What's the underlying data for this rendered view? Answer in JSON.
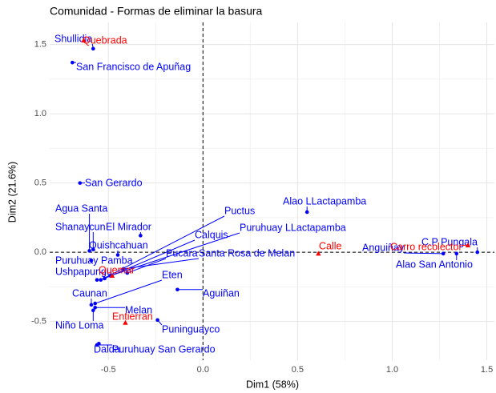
{
  "chart_data": {
    "type": "scatter",
    "title": "Comunidad - Formas de eliminar la basura",
    "x_label": "Dim1 (58%)",
    "y_label": "Dim2 (21.6%)",
    "xlim": [
      -0.81,
      1.54
    ],
    "ylim": [
      -0.78,
      1.66
    ],
    "xticks": [
      {
        "value": -0.5,
        "label": "-0.5"
      },
      {
        "value": 0,
        "label": "0.0"
      },
      {
        "value": 0.5,
        "label": "0.5"
      },
      {
        "value": 1,
        "label": "1.0"
      },
      {
        "value": 1.5,
        "label": "1.5"
      }
    ],
    "yticks": [
      {
        "value": -0.5,
        "label": "-0.5"
      },
      {
        "value": 0,
        "label": "0.0"
      },
      {
        "value": 0.5,
        "label": "0.5"
      },
      {
        "value": 1,
        "label": "1.0"
      },
      {
        "value": 1.5,
        "label": "1.5"
      }
    ],
    "grid": true,
    "series": [
      {
        "color": "#0000ff",
        "marker": "circle",
        "labels": [
          "Shullidia",
          "San Francisco de Apuñag",
          "San Gerardo",
          "Agua Santa",
          "Shanaycun",
          "Quishcahuan",
          "El Mirador",
          "Puctus",
          "Calquis",
          "Puruhuay LLactapamba",
          "Alao LLactapamba",
          "Pucara",
          "Santa Rosa de Melan",
          "Puruhuay Pamba",
          "Ushpapungu",
          "Caunan",
          "Eten",
          "Aguiñan",
          "Melan",
          "Niño Loma",
          "Puninguayco",
          "Dalda",
          "Puruhuay San Gerardo",
          "Anguiñay",
          "C.P Pungala",
          "Alao San Antonio"
        ],
        "x": [
          -0.58,
          -0.69,
          -0.65,
          -0.6,
          -0.58,
          -0.45,
          -0.33,
          -0.54,
          -0.52,
          -0.49,
          0.55,
          -0.4,
          -0.42,
          -0.59,
          -0.56,
          -0.59,
          -0.57,
          -0.135,
          -0.57,
          -0.58,
          -0.24,
          -0.55,
          -0.56,
          1.27,
          1.45,
          1.34
        ],
        "values": [
          1.47,
          1.37,
          0.5,
          0.01,
          0.02,
          -0.02,
          0.12,
          -0.2,
          -0.19,
          -0.17,
          0.29,
          -0.15,
          -0.12,
          -0.06,
          -0.2,
          -0.38,
          -0.37,
          -0.27,
          -0.4,
          -0.42,
          -0.49,
          -0.66,
          -0.67,
          -0.01,
          0,
          -0.01
        ]
      },
      {
        "color": "#ff0000",
        "marker": "triangle",
        "labels": [
          "Quebrada",
          "Calle",
          "Carro recolector",
          "Quemar",
          "Entierran"
        ],
        "x": [
          -0.63,
          0.61,
          1.4,
          -0.48,
          -0.41
        ],
        "values": [
          1.53,
          -0.01,
          0.05,
          -0.17,
          -0.51
        ]
      }
    ]
  }
}
